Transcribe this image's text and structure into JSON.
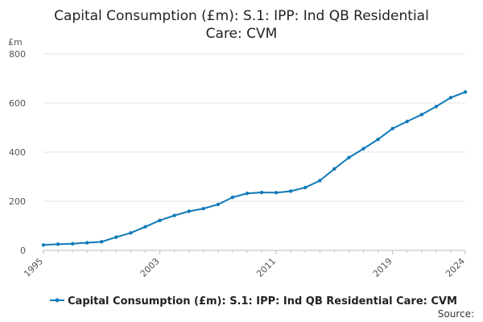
{
  "chart_data": {
    "type": "line",
    "title": "Capital Consumption (£m): S.1: IPP: Ind QB Residential Care: CVM",
    "title_lines": [
      "Capital Consumption (£m): S.1: IPP: Ind QB Residential",
      "Care: CVM"
    ],
    "ylabel": "£m",
    "xlabel": "",
    "ylim": [
      0,
      800
    ],
    "yticks": [
      0,
      200,
      400,
      600,
      800
    ],
    "xlim": [
      1995,
      2024
    ],
    "xticks": [
      1995,
      2003,
      2011,
      2019,
      2024
    ],
    "grid": true,
    "legend_position": "bottom",
    "series": [
      {
        "name": "Capital Consumption (£m): S.1: IPP: Ind QB Residential Care: CVM",
        "color": "#0f7ab8",
        "x": [
          1995,
          1996,
          1997,
          1998,
          1999,
          2000,
          2001,
          2002,
          2003,
          2004,
          2005,
          2006,
          2007,
          2008,
          2009,
          2010,
          2011,
          2012,
          2013,
          2014,
          2015,
          2016,
          2017,
          2018,
          2019,
          2020,
          2021,
          2022,
          2023,
          2024
        ],
        "values": [
          22,
          25,
          27,
          31,
          35,
          54,
          71,
          96,
          122,
          142,
          159,
          170,
          187,
          216,
          232,
          236,
          235,
          241,
          256,
          284,
          332,
          378,
          414,
          452,
          496,
          525,
          553,
          586,
          622,
          645
        ]
      }
    ]
  },
  "footer": {
    "source_label": "Source:"
  }
}
